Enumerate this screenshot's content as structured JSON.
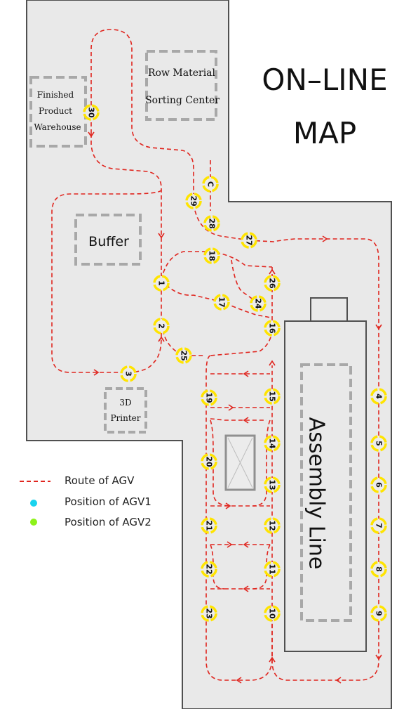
{
  "title": {
    "line1": "ON–LINE",
    "line2": "MAP"
  },
  "areas": {
    "raw_material_line1": "Row Material",
    "raw_material_line2": "Sorting Center",
    "warehouse_line1": "Finished",
    "warehouse_line2": "Product",
    "warehouse_line3": "Warehouse",
    "buffer": "Buffer",
    "printer_line1": "3D",
    "printer_line2": "Printer",
    "assembly": "Assembly Line"
  },
  "legend": {
    "route": "Route of AGV",
    "agv1": "Position of AGV1",
    "agv2": "Position of AGV2"
  },
  "colors": {
    "background": "#e9e9e9",
    "route": "#e0261f",
    "node_ring": "#ffe400",
    "agv1": "#19d3ee",
    "agv2": "#8ef21a",
    "box_dash": "#a8a8a8"
  },
  "nodes": [
    {
      "id": "30",
      "label": "30"
    },
    {
      "id": "C",
      "label": "C"
    },
    {
      "id": "29",
      "label": "29"
    },
    {
      "id": "28",
      "label": "28"
    },
    {
      "id": "27",
      "label": "27"
    },
    {
      "id": "18",
      "label": "18"
    },
    {
      "id": "26",
      "label": "26"
    },
    {
      "id": "1",
      "label": "1"
    },
    {
      "id": "17",
      "label": "17"
    },
    {
      "id": "24",
      "label": "24"
    },
    {
      "id": "16",
      "label": "16"
    },
    {
      "id": "2",
      "label": "2"
    },
    {
      "id": "25",
      "label": "25"
    },
    {
      "id": "3",
      "label": "3"
    },
    {
      "id": "19",
      "label": "19"
    },
    {
      "id": "15",
      "label": "15"
    },
    {
      "id": "4",
      "label": "4"
    },
    {
      "id": "14",
      "label": "14"
    },
    {
      "id": "5",
      "label": "5"
    },
    {
      "id": "20",
      "label": "20"
    },
    {
      "id": "13",
      "label": "13"
    },
    {
      "id": "6",
      "label": "6"
    },
    {
      "id": "21",
      "label": "21"
    },
    {
      "id": "12",
      "label": "12"
    },
    {
      "id": "7",
      "label": "7"
    },
    {
      "id": "22",
      "label": "22"
    },
    {
      "id": "11",
      "label": "11"
    },
    {
      "id": "8",
      "label": "8"
    },
    {
      "id": "23",
      "label": "23"
    },
    {
      "id": "10",
      "label": "10"
    },
    {
      "id": "9",
      "label": "9"
    }
  ]
}
